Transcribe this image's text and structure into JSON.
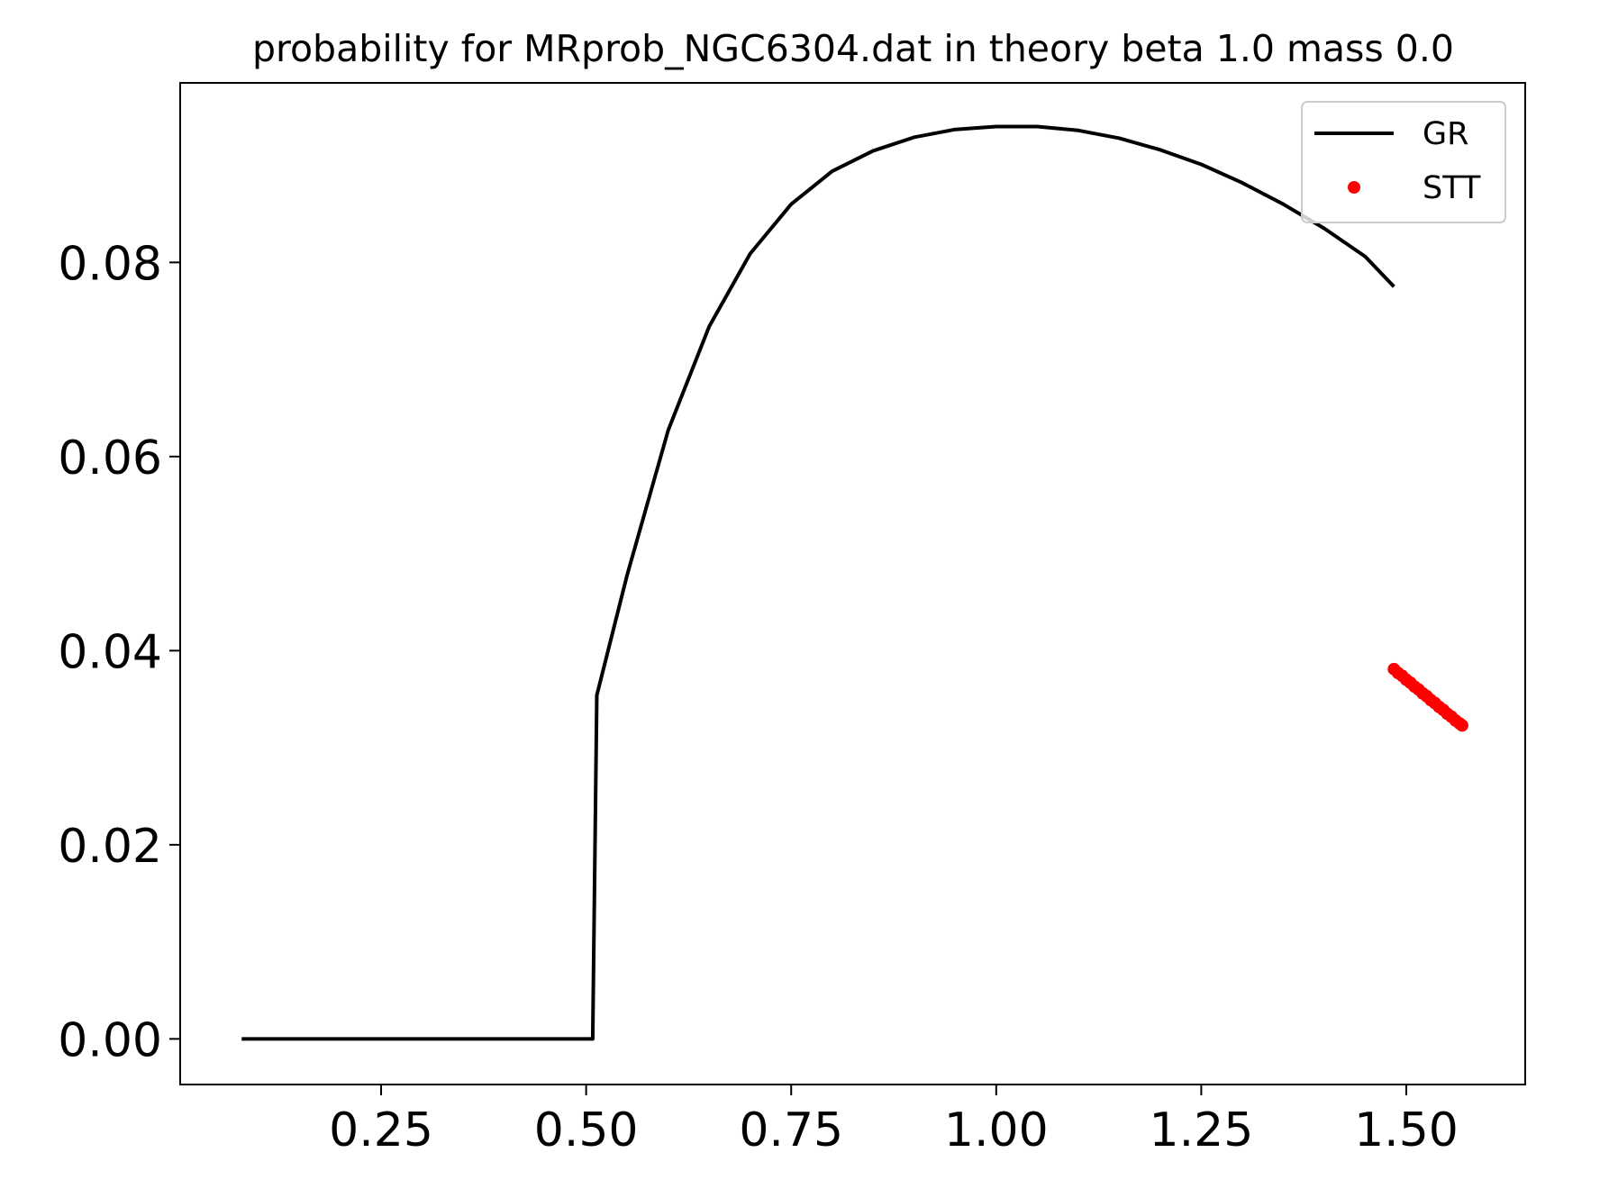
{
  "chart_data": {
    "type": "line",
    "title": "probability for MRprob_NGC6304.dat in theory beta 1.0 mass 0.0",
    "xlabel": "",
    "ylabel": "",
    "xlim": [
      0.005,
      1.645
    ],
    "ylim": [
      -0.0047,
      0.0985
    ],
    "x_ticks": [
      {
        "value": 0.25,
        "label": "0.25"
      },
      {
        "value": 0.5,
        "label": "0.50"
      },
      {
        "value": 0.75,
        "label": "0.75"
      },
      {
        "value": 1.0,
        "label": "1.00"
      },
      {
        "value": 1.25,
        "label": "1.25"
      },
      {
        "value": 1.5,
        "label": "1.50"
      }
    ],
    "y_ticks": [
      {
        "value": 0.0,
        "label": "0.00"
      },
      {
        "value": 0.02,
        "label": "0.02"
      },
      {
        "value": 0.04,
        "label": "0.04"
      },
      {
        "value": 0.06,
        "label": "0.06"
      },
      {
        "value": 0.08,
        "label": "0.08"
      }
    ],
    "grid": false,
    "legend_position": "top-right",
    "series": [
      {
        "name": "GR",
        "style": "line",
        "color": "#000000",
        "points": [
          [
            0.08,
            0.0
          ],
          [
            0.25,
            0.0
          ],
          [
            0.5,
            0.0
          ],
          [
            0.508,
            0.0
          ],
          [
            0.513,
            0.0354
          ],
          [
            0.55,
            0.0478
          ],
          [
            0.6,
            0.0627
          ],
          [
            0.65,
            0.0734
          ],
          [
            0.7,
            0.0809
          ],
          [
            0.75,
            0.086
          ],
          [
            0.8,
            0.0894
          ],
          [
            0.85,
            0.0915
          ],
          [
            0.9,
            0.0929
          ],
          [
            0.95,
            0.0937
          ],
          [
            1.0,
            0.094
          ],
          [
            1.05,
            0.094
          ],
          [
            1.1,
            0.0936
          ],
          [
            1.15,
            0.0928
          ],
          [
            1.2,
            0.0916
          ],
          [
            1.25,
            0.0901
          ],
          [
            1.3,
            0.0882
          ],
          [
            1.35,
            0.086
          ],
          [
            1.4,
            0.0835
          ],
          [
            1.45,
            0.0806
          ],
          [
            1.485,
            0.0775
          ]
        ]
      },
      {
        "name": "STT",
        "style": "scatter",
        "color": "#ff0000",
        "points": [
          [
            1.485,
            0.0381
          ],
          [
            1.49,
            0.0377
          ],
          [
            1.495,
            0.0374
          ],
          [
            1.5,
            0.037
          ],
          [
            1.505,
            0.0367
          ],
          [
            1.51,
            0.0363
          ],
          [
            1.515,
            0.036
          ],
          [
            1.52,
            0.0356
          ],
          [
            1.525,
            0.0353
          ],
          [
            1.53,
            0.0349
          ],
          [
            1.535,
            0.0346
          ],
          [
            1.54,
            0.0342
          ],
          [
            1.545,
            0.0339
          ],
          [
            1.55,
            0.0335
          ],
          [
            1.555,
            0.0332
          ],
          [
            1.56,
            0.0328
          ],
          [
            1.565,
            0.0325
          ],
          [
            1.568,
            0.0323
          ]
        ]
      }
    ]
  }
}
